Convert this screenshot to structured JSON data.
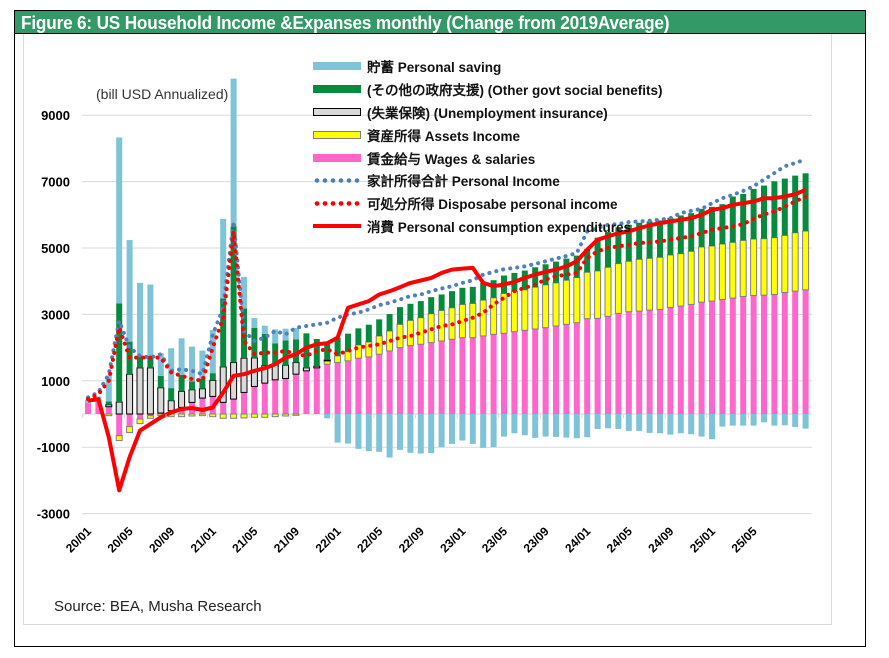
{
  "figure": {
    "title": "Figure 6: US Household Income &Expanses monthly  (Change from 2019Average)",
    "unit_label": "(bill USD Annualized)",
    "source": "Source: BEA, Musha Research"
  },
  "colors": {
    "title_bar": "#339966",
    "saving": "#7fc3d9",
    "govt": "#078a3e",
    "unemployment": "#d9d9d9",
    "assets": "#ffff00",
    "wages": "#ff66cc",
    "personal_income": "#4f81bd",
    "disposable_income": "#ff0000",
    "consumption": "#ff0000"
  },
  "legend": [
    {
      "key": "saving",
      "label": "貯蓄 Personal saving",
      "style": "bar"
    },
    {
      "key": "govt",
      "label": "(その他の政府支援) (Other govt social benefits)",
      "style": "bar"
    },
    {
      "key": "unemployment",
      "label": "(失業保険) (Unemployment insurance)",
      "style": "bar-outlined"
    },
    {
      "key": "assets",
      "label": "資産所得 Assets Income",
      "style": "bar-outlined"
    },
    {
      "key": "wages",
      "label": "賃金給与 Wages & salaries",
      "style": "bar"
    },
    {
      "key": "personal_income",
      "label": "家計所得合計 Personal Income",
      "style": "dots-blue"
    },
    {
      "key": "disposable_income",
      "label": "可処分所得 Disposabe personal income",
      "style": "dots-red"
    },
    {
      "key": "consumption",
      "label": "消費 Personal consumption expenditures",
      "style": "line"
    }
  ],
  "chart_data": {
    "type": "bar",
    "subtype": "stacked bar with line overlays",
    "title": "Figure 6: US Household Income &Expanses monthly  (Change from 2019Average)",
    "ylabel": "(bill USD Annualized)",
    "xlabel": "",
    "ylim": [
      -3000,
      10000
    ],
    "yticks": [
      9000,
      7000,
      5000,
      3000,
      1000,
      -1000,
      -3000
    ],
    "grid": true,
    "legend_position": "top-center",
    "xtick_labels": [
      "20/01",
      "20/05",
      "20/09",
      "21/01",
      "21/05",
      "21/09",
      "22/01",
      "22/05",
      "22/09",
      "23/01",
      "23/05",
      "23/09",
      "24/01",
      "24/05",
      "24/09",
      "25/01",
      "25/05"
    ],
    "xtick_interval_months": 4,
    "categories": [
      "20/01",
      "20/02",
      "20/03",
      "20/04",
      "20/05",
      "20/06",
      "20/07",
      "20/08",
      "20/09",
      "20/10",
      "20/11",
      "20/12",
      "21/01",
      "21/02",
      "21/03",
      "21/04",
      "21/05",
      "21/06",
      "21/07",
      "21/08",
      "21/09",
      "21/10",
      "21/11",
      "21/12",
      "22/01",
      "22/02",
      "22/03",
      "22/04",
      "22/05",
      "22/06",
      "22/07",
      "22/08",
      "22/09",
      "22/10",
      "22/11",
      "22/12",
      "23/01",
      "23/02",
      "23/03",
      "23/04",
      "23/05",
      "23/06",
      "23/07",
      "23/08",
      "23/09",
      "23/10",
      "23/11",
      "23/12",
      "24/01",
      "24/02",
      "24/03",
      "24/04",
      "24/05",
      "24/06",
      "24/07",
      "24/08",
      "24/09",
      "24/10",
      "24/11",
      "24/12",
      "25/01",
      "25/02",
      "25/03",
      "25/04",
      "25/05",
      "25/06",
      "25/07",
      "25/08",
      "25/09",
      "25/10"
    ],
    "series": [
      {
        "name": "賃金給与 Wages & salaries",
        "key": "wages",
        "values": [
          330,
          380,
          220,
          -650,
          -380,
          -150,
          -50,
          30,
          100,
          200,
          350,
          480,
          530,
          350,
          450,
          650,
          830,
          930,
          1030,
          1070,
          1200,
          1300,
          1390,
          1500,
          1550,
          1600,
          1680,
          1720,
          1800,
          1900,
          2000,
          2060,
          2100,
          2150,
          2200,
          2250,
          2300,
          2300,
          2350,
          2400,
          2430,
          2480,
          2520,
          2560,
          2600,
          2650,
          2700,
          2750,
          2870,
          2880,
          2940,
          3030,
          3080,
          3100,
          3130,
          3150,
          3210,
          3250,
          3300,
          3370,
          3400,
          3450,
          3490,
          3540,
          3570,
          3580,
          3600,
          3660,
          3700,
          3740
        ]
      },
      {
        "name": "資産所得 Assets Income",
        "key": "assets",
        "values": [
          0,
          0,
          -50,
          -150,
          -180,
          -140,
          -80,
          -50,
          -80,
          -80,
          -60,
          -50,
          -80,
          -130,
          -130,
          -120,
          -100,
          -100,
          -80,
          -60,
          -40,
          0,
          0,
          100,
          200,
          280,
          400,
          450,
          550,
          600,
          700,
          760,
          800,
          870,
          920,
          950,
          1000,
          1030,
          1080,
          1100,
          1200,
          1210,
          1220,
          1260,
          1290,
          1300,
          1330,
          1360,
          1400,
          1430,
          1480,
          1500,
          1520,
          1560,
          1560,
          1570,
          1580,
          1580,
          1600,
          1660,
          1660,
          1670,
          1680,
          1690,
          1700,
          1700,
          1710,
          1720,
          1760,
          1770
        ]
      },
      {
        "name": "(失業保険) (Unemployment insurance)",
        "key": "unemployment",
        "values": [
          0,
          0,
          60,
          360,
          1200,
          1390,
          1390,
          760,
          300,
          480,
          380,
          280,
          480,
          1070,
          1100,
          1030,
          860,
          530,
          450,
          400,
          350,
          90,
          50,
          30,
          0,
          0,
          0,
          0,
          0,
          0,
          0,
          0,
          0,
          0,
          0,
          0,
          0,
          0,
          0,
          0,
          0,
          0,
          0,
          0,
          0,
          0,
          0,
          0,
          0,
          0,
          0,
          0,
          0,
          0,
          0,
          0,
          0,
          0,
          0,
          0,
          0,
          0,
          0,
          0,
          0,
          0,
          0,
          0,
          0,
          0
        ]
      },
      {
        "name": "(その他の政府支援) (Other govt social benefits)",
        "key": "govt",
        "values": [
          0,
          0,
          100,
          2970,
          980,
          360,
          360,
          360,
          380,
          500,
          250,
          300,
          220,
          2060,
          4100,
          1500,
          900,
          950,
          650,
          750,
          700,
          1040,
          820,
          550,
          550,
          540,
          500,
          520,
          500,
          510,
          520,
          500,
          500,
          500,
          480,
          500,
          500,
          500,
          520,
          530,
          540,
          560,
          580,
          600,
          620,
          640,
          650,
          660,
          700,
          1000,
          1060,
          1090,
          1100,
          1100,
          1110,
          1110,
          1120,
          1150,
          1150,
          1150,
          1180,
          1200,
          1380,
          1400,
          1510,
          1600,
          1700,
          1710,
          1720,
          1740
        ]
      },
      {
        "name": "貯蓄 Personal saving",
        "key": "saving",
        "values": [
          100,
          150,
          780,
          5000,
          3060,
          2200,
          2150,
          680,
          1200,
          1100,
          1050,
          850,
          1300,
          2400,
          4450,
          950,
          300,
          250,
          420,
          350,
          340,
          0,
          0,
          -130,
          -860,
          -890,
          -1050,
          -1120,
          -1140,
          -1310,
          -1080,
          -1170,
          -1190,
          -1180,
          -1000,
          -900,
          -800,
          -900,
          -1020,
          -1000,
          -680,
          -580,
          -640,
          -720,
          -680,
          -690,
          -710,
          -730,
          -700,
          -450,
          -430,
          -450,
          -510,
          -510,
          -570,
          -580,
          -620,
          -580,
          -610,
          -680,
          -760,
          -380,
          -350,
          -350,
          -350,
          -250,
          -350,
          -340,
          -390,
          -440
        ]
      },
      {
        "name": "家計所得合計 Personal Income",
        "key": "personal_income",
        "style": "dotted-line",
        "values": [
          500,
          650,
          1200,
          2800,
          2000,
          1750,
          1700,
          1800,
          1300,
          1350,
          1300,
          1200,
          2400,
          3200,
          5800,
          2500,
          2200,
          2300,
          2500,
          2400,
          2600,
          2650,
          2700,
          2750,
          2900,
          3000,
          3050,
          3150,
          3280,
          3350,
          3450,
          3550,
          3600,
          3700,
          3780,
          3850,
          3950,
          4030,
          4200,
          4280,
          4360,
          4400,
          4450,
          4520,
          4600,
          4680,
          4760,
          4850,
          5500,
          5600,
          5700,
          5720,
          5780,
          5800,
          5820,
          5850,
          5900,
          6050,
          6120,
          6180,
          6350,
          6500,
          6600,
          6720,
          6860,
          7060,
          7260,
          7460,
          7560,
          7670
        ]
      },
      {
        "name": "可処分所得 Disposabe personal income",
        "key": "disposable_income",
        "style": "dotted-line",
        "values": [
          450,
          600,
          1000,
          2600,
          1700,
          1700,
          1700,
          1700,
          1250,
          1150,
          1050,
          1000,
          2000,
          2900,
          5500,
          2200,
          1800,
          1850,
          1850,
          1900,
          1800,
          1750,
          1900,
          1950,
          1800,
          1900,
          2000,
          2050,
          2100,
          2200,
          2300,
          2350,
          2450,
          2550,
          2650,
          2700,
          2800,
          2900,
          3050,
          3300,
          3500,
          3700,
          3800,
          3900,
          4050,
          4150,
          4200,
          4250,
          4700,
          4900,
          5000,
          5050,
          5100,
          5150,
          5170,
          5200,
          5250,
          5300,
          5350,
          5450,
          5550,
          5600,
          5650,
          5720,
          5880,
          6010,
          6100,
          6250,
          6400,
          6550
        ]
      },
      {
        "name": "消費 Personal consumption expenditures",
        "key": "consumption",
        "style": "solid-line",
        "values": [
          400,
          450,
          -700,
          -2300,
          -1300,
          -500,
          -300,
          -100,
          50,
          150,
          180,
          120,
          200,
          650,
          1150,
          1200,
          1300,
          1380,
          1500,
          1700,
          1800,
          2000,
          2100,
          2130,
          2300,
          3200,
          3300,
          3400,
          3600,
          3700,
          3820,
          3950,
          4020,
          4100,
          4250,
          4350,
          4380,
          4400,
          3950,
          3850,
          3900,
          3980,
          4100,
          4200,
          4280,
          4350,
          4450,
          4600,
          4950,
          5250,
          5350,
          5450,
          5500,
          5600,
          5680,
          5750,
          5800,
          5850,
          5900,
          6000,
          6150,
          6200,
          6300,
          6350,
          6400,
          6500,
          6500,
          6550,
          6620,
          6750
        ]
      }
    ]
  }
}
